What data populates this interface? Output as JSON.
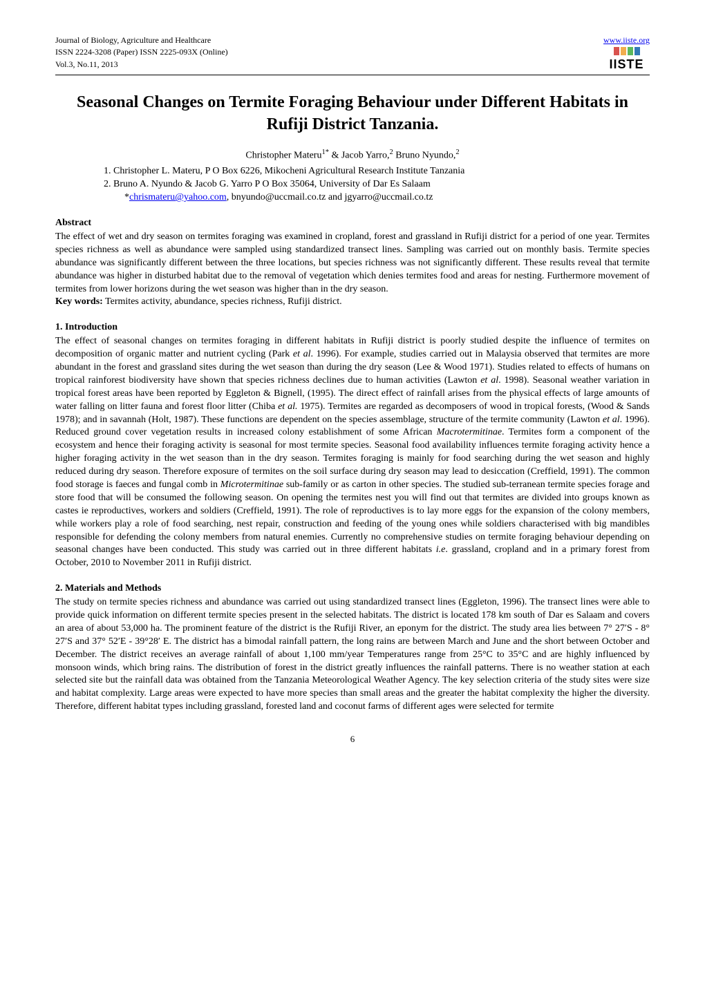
{
  "header": {
    "journal_name": "Journal of Biology, Agriculture and Healthcare",
    "issn_line": "ISSN 2224-3208 (Paper)  ISSN 2225-093X (Online)",
    "vol_line": "Vol.3, No.11, 2013",
    "site_url": "www.iiste.org",
    "logo_text": "IISTE",
    "logo_bar_colors": [
      "#d9534f",
      "#f0ad4e",
      "#5cb85c",
      "#337ab7"
    ]
  },
  "title": "Seasonal Changes on Termite Foraging Behaviour under Different Habitats in Rufiji District Tanzania.",
  "authors_line_html": "Christopher Materu<sup>1*</sup> & Jacob Yarro,<sup>2</sup> Bruno Nyundo,<sup>2</sup>",
  "affiliations": {
    "line1": "1.   Christopher L. Materu, P O Box 6226, Mikocheni Agricultural Research Institute Tanzania",
    "line2": "2.   Bruno A. Nyundo & Jacob G. Yarro P O Box 35064, University of Dar Es Salaam",
    "emails_prefix": "*",
    "email_link": "chrismateru@yahoo.com",
    "emails_rest": ", bnyundo@uccmail.co.tz and jgyarro@uccmail.co.tz"
  },
  "abstract": {
    "heading": "Abstract",
    "body": "The effect of wet and dry season on termites foraging was examined in cropland, forest and grassland in Rufiji district for a period of one year. Termites species richness as well as abundance were sampled using standardized transect lines. Sampling was carried out on monthly basis. Termite species abundance was significantly different between the three locations, but species richness was not significantly different. These results reveal that termite abundance was higher in disturbed habitat due to the removal of vegetation which denies termites food and areas for nesting. Furthermore movement of termites from lower horizons during the wet season was higher than in the dry season.",
    "keywords_label": "Key words:",
    "keywords_text": " Termites activity, abundance, species richness, Rufiji district."
  },
  "intro": {
    "heading": "1. Introduction",
    "body_html": "The effect of seasonal changes on termites foraging in different habitats in Rufiji district is poorly studied despite the influence of termites on decomposition of organic matter and nutrient cycling (Park <span class=\"italic\">et al</span>. 1996). For example, studies carried out in Malaysia observed that termites are more abundant in the forest and grassland sites during the wet season than during the dry season (Lee & Wood 1971). Studies related to effects of humans on tropical rainforest biodiversity have shown that species richness declines due to human activities (Lawton <span class=\"italic\">et al</span>. 1998). Seasonal weather variation in tropical forest areas have been reported by Eggleton & Bignell, (1995). The direct effect of rainfall arises from the physical effects of large amounts of water falling on litter fauna and forest floor litter (Chiba <span class=\"italic\">et al.</span> 1975). Termites are regarded as decomposers of wood in tropical forests, (Wood & Sands 1978); and in savannah (Holt, 1987). These functions are dependent on the species assemblage, structure of the termite community (Lawton <span class=\"italic\">et al</span>. 1996). Reduced ground cover vegetation results in increased colony establishment of some African <span class=\"italic\">Macrotermitinae</span>. Termites form a component of the ecosystem and hence their foraging activity is seasonal for most termite species. Seasonal food availability influences termite foraging activity hence a higher foraging activity in the wet season than in the dry season. Termites foraging is mainly for food searching during the wet season and highly reduced during dry season. Therefore exposure of termites on the soil surface during dry season may lead to desiccation (Creffield, 1991). The common food storage is faeces and fungal comb in <span class=\"italic\">Microtermitinae</span> sub-family or as carton in other species. The studied sub-terranean termite species forage and store food that will be consumed the following season. On opening the termites nest you will find out that termites are divided into groups known as castes ie reproductives, workers and soldiers (Creffield, 1991). The role of reproductives is to lay more eggs for the expansion of the colony members, while workers play a role of food searching, nest repair, construction and feeding of the young ones while soldiers characterised with big mandibles responsible for defending the colony members from natural enemies. Currently no comprehensive studies on termite foraging behaviour depending on seasonal changes have been conducted. This study was carried out in three different habitats <span class=\"italic\">i.e</span>. grassland, cropland and in a primary forest from October, 2010 to November 2011 in Rufiji district."
  },
  "methods": {
    "heading": "2. Materials and Methods",
    "body_html": "The study on termite species richness and abundance was carried out using standardized transect lines (Eggleton, 1996). The transect lines were able to provide quick information on different termite species present in the selected habitats. The district is located 178 km south of Dar es Salaam and covers an area of about 53,000 ha. The prominent feature of the district is the Rufiji River, an eponym for the district. The study area lies between 7° 27′S - 8° 27′S and 37° 52′E - 39°28′ E. The district has a bimodal rainfall pattern, the long rains are between March and June and the short between October and December. The district receives an average rainfall of about 1,100 mm/year Temperatures range from 25°C to 35°C and are highly influenced by monsoon winds, which bring rains. The distribution of forest in the district greatly influences the rainfall patterns. There is no weather station at each selected site but the rainfall data was obtained from the Tanzania Meteorological Weather Agency. The key selection criteria of the study sites were size and habitat complexity. Large areas were expected to have more species than small areas and the greater the habitat complexity the higher the diversity. Therefore, different habitat types including grassland, forested land and coconut farms of different ages were selected for termite"
  },
  "page_number": "6"
}
